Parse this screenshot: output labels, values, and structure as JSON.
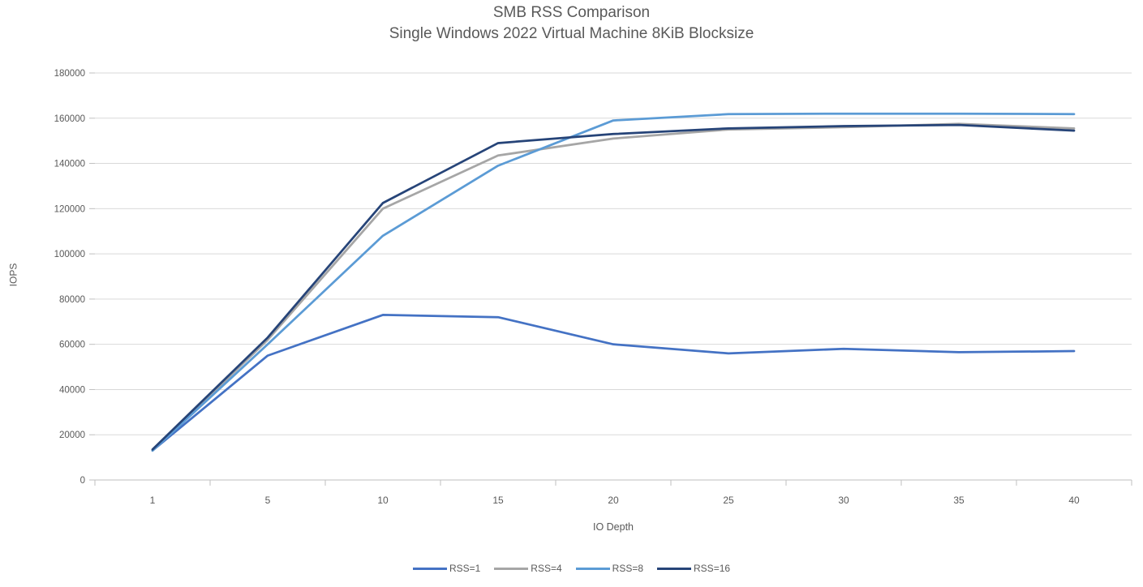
{
  "chart_data": {
    "type": "line",
    "title": "SMB RSS Comparison",
    "subtitle": "Single Windows 2022 Virtual Machine 8KiB Blocksize",
    "xlabel": "IO Depth",
    "ylabel": "IOPS",
    "categories": [
      1,
      5,
      10,
      15,
      20,
      25,
      30,
      35,
      40
    ],
    "ylim": [
      0,
      180000
    ],
    "y_tick_step": 20000,
    "grid": true,
    "legend_position": "bottom",
    "series": [
      {
        "name": "RSS=1",
        "color": "#4472C4",
        "values": [
          13000,
          55000,
          73000,
          72000,
          60000,
          56000,
          58000,
          56500,
          57000
        ]
      },
      {
        "name": "RSS=4",
        "color": "#A6A6A6",
        "values": [
          13000,
          62000,
          120000,
          143500,
          151000,
          155000,
          156000,
          157500,
          155500
        ]
      },
      {
        "name": "RSS=8",
        "color": "#5B9BD5",
        "values": [
          13000,
          60000,
          108000,
          139000,
          159000,
          161800,
          162000,
          162000,
          161800
        ]
      },
      {
        "name": "RSS=16",
        "color": "#264478",
        "values": [
          13500,
          63000,
          122500,
          149000,
          153000,
          155500,
          156500,
          157000,
          154500
        ]
      }
    ],
    "axis_text_color": "#595959",
    "gridline_color": "#D9D9D9",
    "axis_line_color": "#BFBFBF"
  }
}
